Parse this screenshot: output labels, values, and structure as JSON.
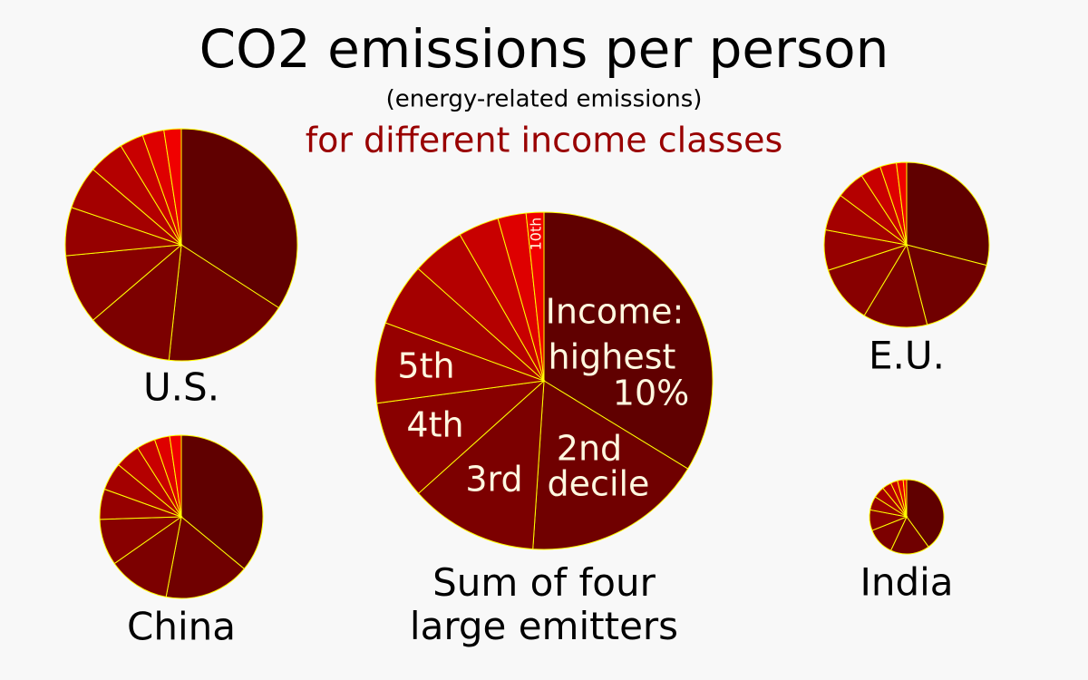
{
  "header": {
    "title": "CO2 emissions per person",
    "subtitle": "(energy-related emissions)",
    "tagline": "for different income classes"
  },
  "chart_data": [
    {
      "type": "pie",
      "name": "U.S.",
      "values": [
        34,
        17.5,
        12,
        9.7,
        6.7,
        6,
        5,
        3.3,
        3,
        2.4
      ],
      "colors": [
        "#600000",
        "#700000",
        "#7c0000",
        "#880000",
        "#960000",
        "#a40000",
        "#b40000",
        "#c80000",
        "#de0000",
        "#f00000"
      ]
    },
    {
      "type": "pie",
      "name": "E.U.",
      "values": [
        29,
        17,
        12.6,
        11.4,
        7.9,
        7.3,
        5.6,
        4,
        3.2,
        2
      ],
      "colors": [
        "#600000",
        "#700000",
        "#7c0000",
        "#880000",
        "#960000",
        "#a40000",
        "#b40000",
        "#c80000",
        "#de0000",
        "#f00000"
      ]
    },
    {
      "type": "pie",
      "name": "China",
      "values": [
        36,
        17,
        12.3,
        9.2,
        6,
        5.5,
        5,
        3.7,
        3,
        2.3
      ],
      "colors": [
        "#600000",
        "#700000",
        "#7c0000",
        "#880000",
        "#960000",
        "#a40000",
        "#b40000",
        "#c80000",
        "#de0000",
        "#f00000"
      ]
    },
    {
      "type": "pie",
      "name": "India",
      "values": [
        40,
        17,
        12,
        9,
        6,
        5,
        4,
        3,
        2.5,
        1.5
      ],
      "colors": [
        "#600000",
        "#700000",
        "#7c0000",
        "#880000",
        "#960000",
        "#a40000",
        "#b40000",
        "#c80000",
        "#de0000",
        "#f00000"
      ]
    },
    {
      "type": "pie",
      "name": "Sum of four large emitters",
      "values": [
        33.7,
        17.3,
        12.3,
        9.5,
        7.7,
        6,
        5.1,
        3.9,
        2.7,
        1.7
      ],
      "colors": [
        "#600000",
        "#700000",
        "#7c0000",
        "#880000",
        "#960000",
        "#a40000",
        "#b40000",
        "#c80000",
        "#de0000",
        "#f00000"
      ],
      "annotations": [
        "Income:",
        "highest",
        "10%",
        "2nd",
        "decile",
        "3rd",
        "4th",
        "5th",
        "10th"
      ]
    }
  ]
}
